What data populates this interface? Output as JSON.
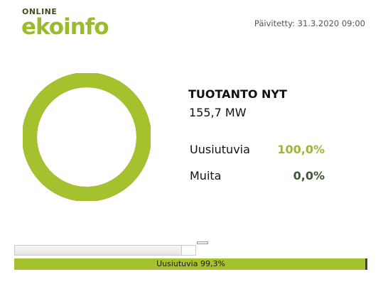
{
  "header": {
    "logo_small": "ONLINE",
    "logo_main": "ekoinfo",
    "updated": "Päivitetty: 31.3.2020 09:00"
  },
  "production": {
    "title": "TUOTANTO NYT",
    "power": "155,7 MW",
    "renewable_label": "Uusiutuvia",
    "renewable_value": "100,0%",
    "renewable_fraction": 1.0,
    "other_label": "Muita",
    "other_value": "0,0%",
    "other_fraction": 0.0
  },
  "progress": {
    "label": "Uusiutuvia 99,3%",
    "fraction": 0.993
  },
  "colors": {
    "accent_green": "#a5c12e",
    "dark_green": "#3c5a32",
    "logo_dark": "#3f4d1f"
  }
}
